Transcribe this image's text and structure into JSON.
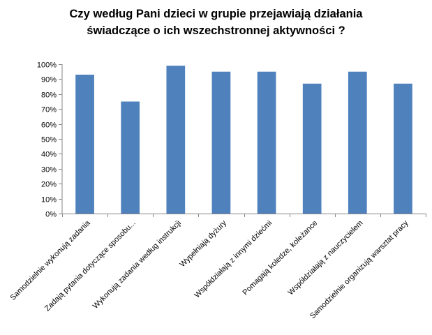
{
  "chart_data": {
    "type": "bar",
    "title": "Czy według Pani dzieci w grupie przejawiają działania świadczące o ich wszechstronnej aktywności ?",
    "title_lines": [
      "Czy według Pani dzieci w grupie przejawiają działania",
      "świadczące o ich wszechstronnej aktywności ?"
    ],
    "categories": [
      "Samodzielnie wykonują zadania",
      "Zadają pytania dotyczące sposobu...",
      "Wykonują zadania według instrukcji",
      "Wypełniają  dyżury",
      "Współdziałają  z innymi dziećmi",
      "Pomagają  koledze, koleżance",
      "Współdziałają z nauczycielem",
      "Samodzielnie organizują warsztat  pracy"
    ],
    "values": [
      93,
      75,
      99,
      95,
      95,
      87,
      95,
      87
    ],
    "y_ticks": [
      "0%",
      "10%",
      "20%",
      "30%",
      "40%",
      "50%",
      "60%",
      "70%",
      "80%",
      "90%",
      "100%"
    ],
    "ylim": [
      0,
      100
    ],
    "y_unit": "%",
    "grid": false,
    "legend": "none",
    "bar_color": "#4F81BD",
    "axis_color": "#868686"
  }
}
